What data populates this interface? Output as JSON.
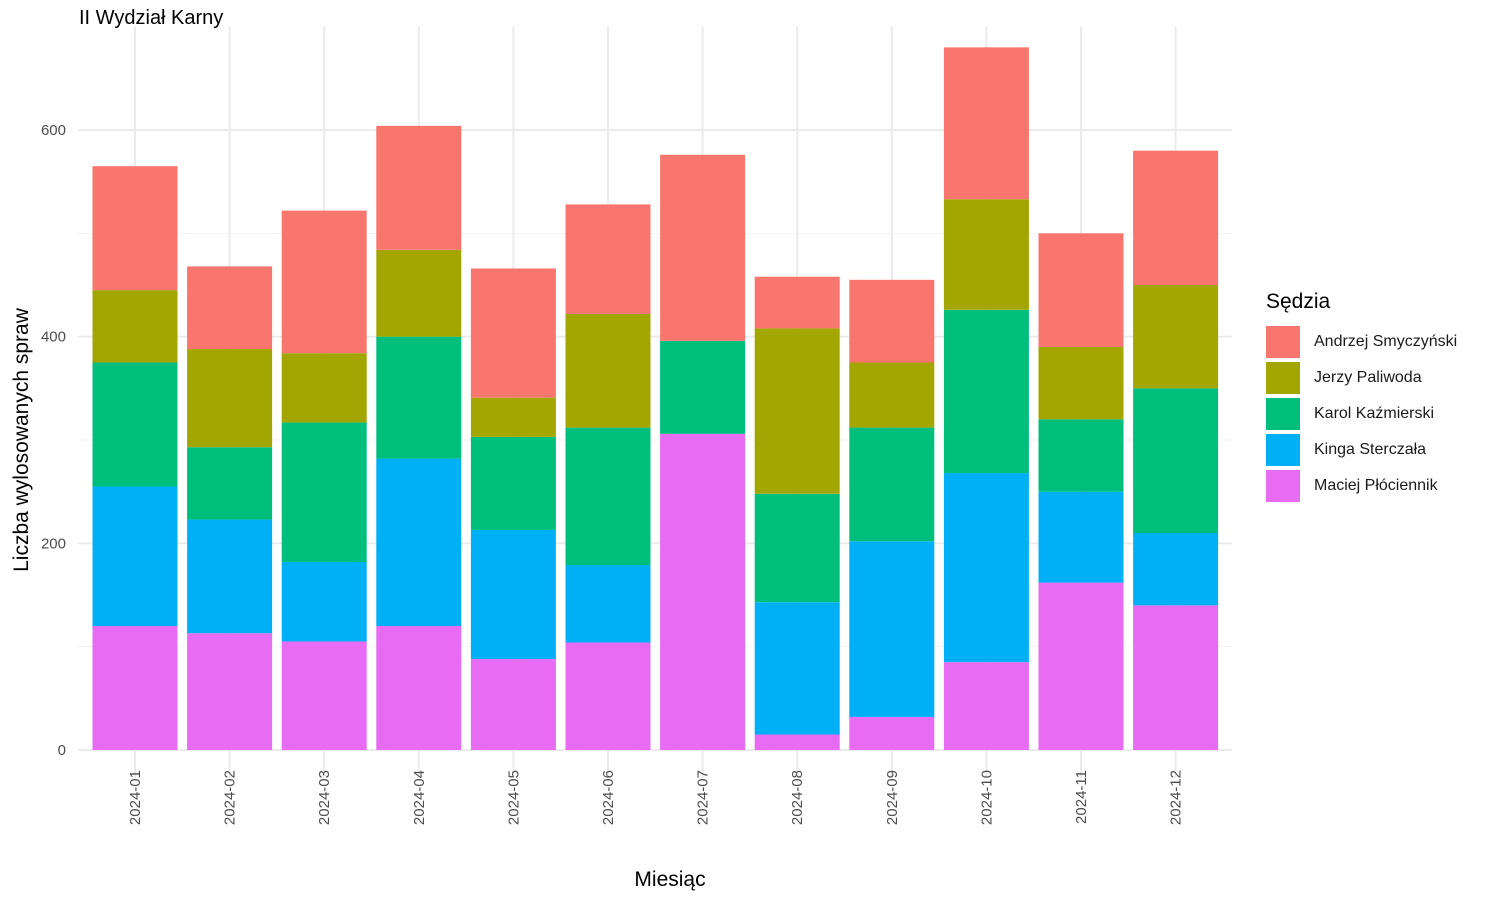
{
  "chart_data": {
    "type": "bar",
    "stacked": true,
    "title": "II Wydział Karny",
    "xlabel": "Miesiąc",
    "ylabel": "Liczba wylosowanych spraw",
    "ylim": [
      0,
      700
    ],
    "yticks": [
      0,
      200,
      400,
      600
    ],
    "grid": true,
    "legend_title": "Sędzia",
    "legend_position": "right",
    "categories": [
      "2024-01",
      "2024-02",
      "2024-03",
      "2024-04",
      "2024-05",
      "2024-06",
      "2024-07",
      "2024-08",
      "2024-09",
      "2024-10",
      "2024-11",
      "2024-12"
    ],
    "series": [
      {
        "name": "Andrzej Smyczyński",
        "color": "#F8766D",
        "values": [
          120,
          80,
          138,
          120,
          125,
          106,
          180,
          50,
          80,
          147,
          110,
          130
        ]
      },
      {
        "name": "Jerzy Paliwoda",
        "color": "#A3A500",
        "values": [
          70,
          95,
          67,
          84,
          38,
          110,
          0,
          160,
          63,
          107,
          70,
          100
        ]
      },
      {
        "name": "Karol Kaźmierski",
        "color": "#00BF7D",
        "values": [
          120,
          70,
          135,
          118,
          90,
          133,
          90,
          105,
          110,
          158,
          70,
          140
        ]
      },
      {
        "name": "Kinga Sterczała",
        "color": "#00B0F6",
        "values": [
          135,
          110,
          77,
          162,
          125,
          75,
          0,
          128,
          170,
          183,
          88,
          70
        ]
      },
      {
        "name": "Maciej Płóciennik",
        "color": "#E76BF3",
        "values": [
          120,
          113,
          105,
          120,
          88,
          104,
          306,
          15,
          32,
          85,
          162,
          140
        ]
      }
    ]
  }
}
